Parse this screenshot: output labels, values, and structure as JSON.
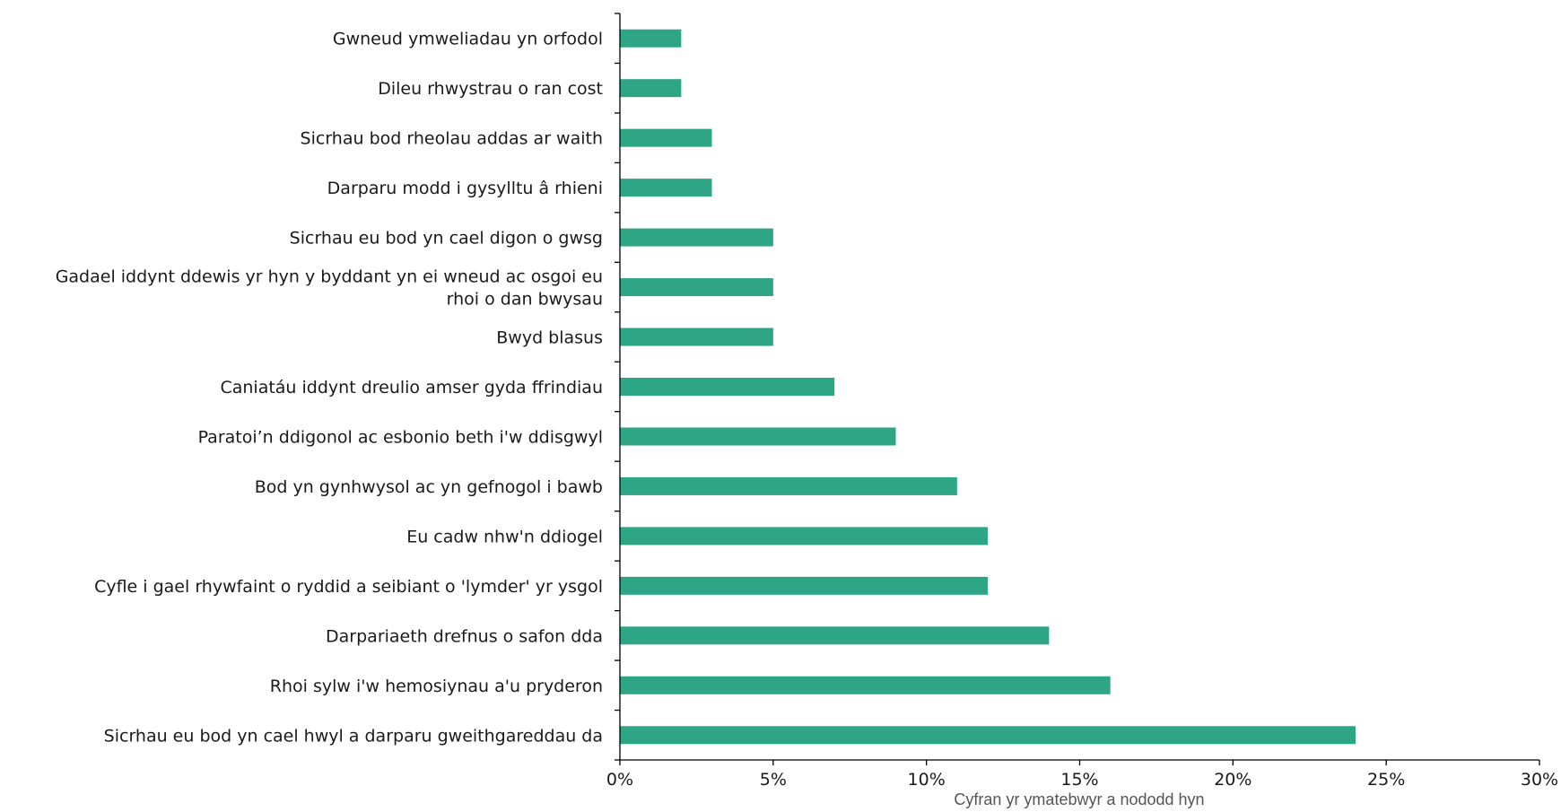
{
  "chart_data": {
    "type": "bar",
    "orientation": "horizontal",
    "categories": [
      "Gwneud ymweliadau yn orfodol",
      "Dileu rhwystrau o ran cost",
      "Sicrhau bod rheolau addas ar waith",
      "Darparu modd i gysylltu â rhieni",
      "Sicrhau eu bod yn cael digon o gwsg",
      "Gadael iddynt ddewis yr hyn y byddant yn ei wneud ac osgoi eu rhoi o dan bwysau",
      "Bwyd blasus",
      "Caniatáu iddynt dreulio amser gyda ffrindiau",
      "Paratoi’n ddigonol ac esbonio beth i'w ddisgwyl",
      "Bod yn gynhwysol ac yn gefnogol i bawb",
      "Eu cadw nhw'n ddiogel",
      "Cyfle i gael rhywfaint o ryddid a seibiant o 'lymder' yr ysgol",
      "Darpariaeth drefnus o safon dda",
      "Rhoi sylw i'w hemosiynau a'u pryderon",
      "Sicrhau eu bod yn cael hwyl a darparu gweithgareddau da"
    ],
    "category_lines": [
      [
        "Gwneud ymweliadau yn orfodol"
      ],
      [
        "Dileu rhwystrau o ran cost"
      ],
      [
        "Sicrhau bod rheolau addas ar waith"
      ],
      [
        "Darparu modd i gysylltu â rhieni"
      ],
      [
        "Sicrhau eu bod yn cael digon o gwsg"
      ],
      [
        "Gadael iddynt ddewis yr hyn y byddant yn ei wneud ac osgoi eu",
        "rhoi o dan bwysau"
      ],
      [
        "Bwyd blasus"
      ],
      [
        "Caniatáu iddynt dreulio amser gyda ffrindiau"
      ],
      [
        "Paratoi’n ddigonol ac esbonio beth i'w ddisgwyl"
      ],
      [
        "Bod yn gynhwysol ac yn gefnogol i bawb"
      ],
      [
        "Eu cadw nhw'n ddiogel"
      ],
      [
        "Cyfle i gael rhywfaint o ryddid a seibiant o 'lymder' yr ysgol"
      ],
      [
        "Darpariaeth drefnus o safon dda"
      ],
      [
        "Rhoi sylw i'w hemosiynau a'u pryderon"
      ],
      [
        "Sicrhau eu bod yn cael hwyl a darparu gweithgareddau da"
      ]
    ],
    "values": [
      2,
      2,
      3,
      3,
      5,
      5,
      5,
      7,
      9,
      11,
      12,
      12,
      14,
      16,
      24
    ],
    "value_unit": "%",
    "xlabel": "Cyfran yr ymatebwyr a nododd hyn",
    "ylabel": "",
    "title": "",
    "xlim": [
      0,
      30
    ],
    "xticks": [
      0,
      5,
      10,
      15,
      20,
      25,
      30
    ],
    "xtick_labels": [
      "0%",
      "5%",
      "10%",
      "15%",
      "20%",
      "25%",
      "30%"
    ],
    "grid": false,
    "legend": "none",
    "bar_color": "#2ea585"
  }
}
